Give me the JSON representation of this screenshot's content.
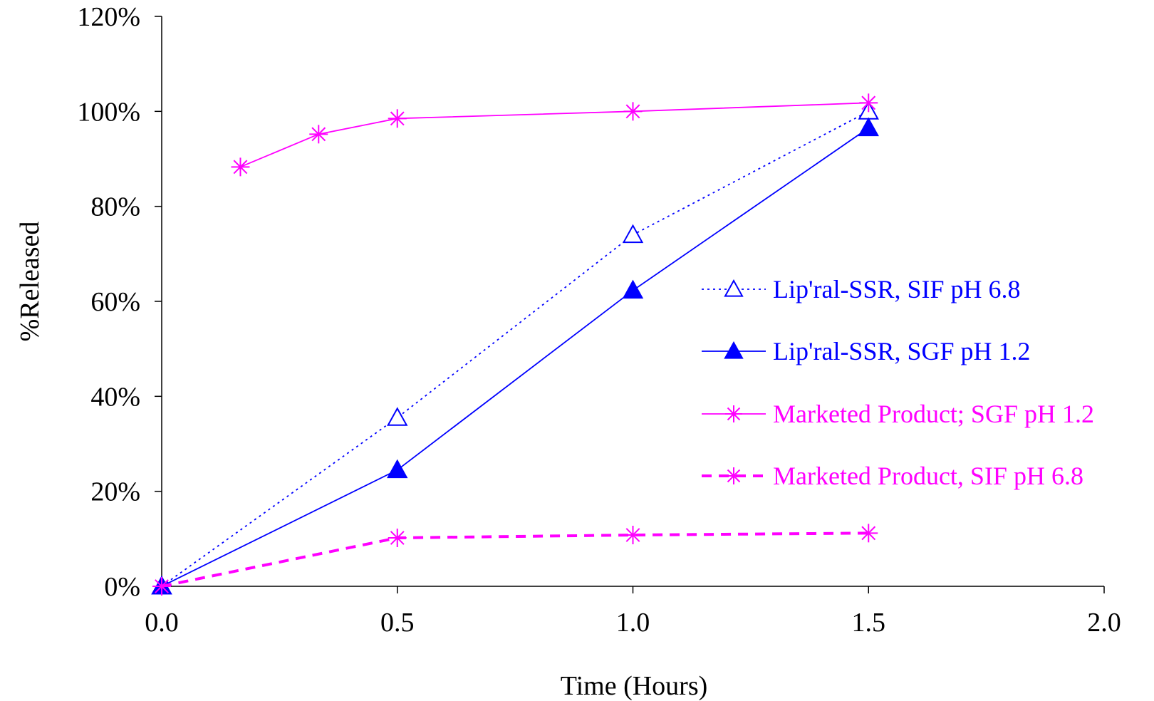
{
  "chart_data": {
    "type": "line",
    "title": "",
    "xlabel": "Time (Hours)",
    "ylabel": "%Released",
    "xlim": [
      0,
      2
    ],
    "ylim": [
      0,
      120
    ],
    "x_ticks": [
      "0.0",
      "0.5",
      "1.0",
      "1.5",
      "2.0"
    ],
    "y_ticks": [
      "0%",
      "20%",
      "40%",
      "60%",
      "80%",
      "100%",
      "120%"
    ],
    "grid": false,
    "legend_position": "right",
    "series": [
      {
        "name": "Lip'ral-SSR, SIF pH 6.8",
        "color": "#0000ff",
        "line_style": "dotted",
        "marker": "triangle-open",
        "x": [
          0,
          0.5,
          1.0,
          1.5
        ],
        "y": [
          0,
          35.5,
          74,
          100
        ]
      },
      {
        "name": "Lip'ral-SSR, SGF pH 1.2",
        "color": "#0000ff",
        "line_style": "solid",
        "marker": "triangle-filled",
        "x": [
          0,
          0.5,
          1.0,
          1.5
        ],
        "y": [
          0,
          24.5,
          62.3,
          96.5
        ]
      },
      {
        "name": "Marketed Product; SGF pH 1.2",
        "color": "#ff00ff",
        "line_style": "solid",
        "marker": "asterisk",
        "x": [
          0.167,
          0.333,
          0.5,
          1.0,
          1.5
        ],
        "y": [
          88.3,
          95.2,
          98.5,
          100,
          101.8
        ]
      },
      {
        "name": "Marketed Product, SIF pH 6.8",
        "color": "#ff00ff",
        "line_style": "dashed",
        "marker": "asterisk",
        "x": [
          0,
          0.5,
          1.0,
          1.5
        ],
        "y": [
          0,
          10.2,
          10.8,
          11.2
        ]
      }
    ]
  }
}
